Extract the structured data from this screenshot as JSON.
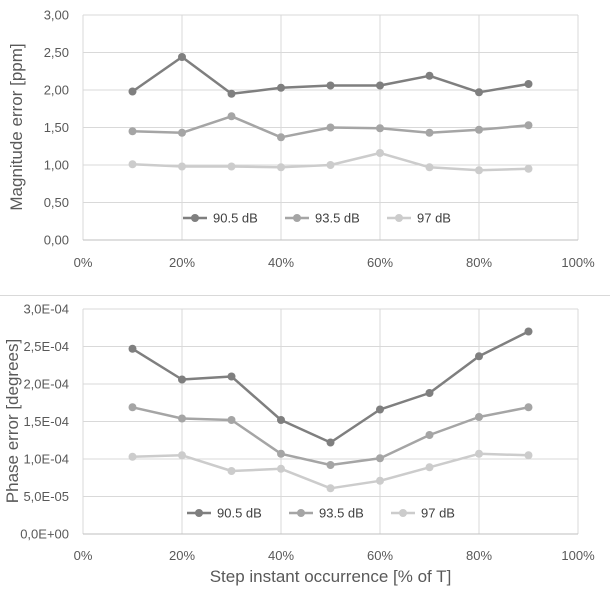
{
  "chart_data": [
    {
      "type": "line",
      "title": "",
      "xlabel": "",
      "ylabel": "Magnitude error [ppm]",
      "xlim": [
        0,
        100
      ],
      "xticks": [
        "0%",
        "20%",
        "40%",
        "60%",
        "80%",
        "100%"
      ],
      "ylim": [
        0,
        3
      ],
      "yticks": [
        "0,00",
        "0,50",
        "1,00",
        "1,50",
        "2,00",
        "2,50",
        "3,00"
      ],
      "grid": true,
      "legend_position": "bottom-inside",
      "x": [
        10,
        20,
        30,
        40,
        50,
        60,
        70,
        80,
        90
      ],
      "series": [
        {
          "name": "90.5 dB",
          "color": "#7f7f7f",
          "values": [
            1.98,
            2.44,
            1.95,
            2.03,
            2.06,
            2.06,
            2.19,
            1.97,
            2.08
          ]
        },
        {
          "name": "93.5 dB",
          "color": "#a5a5a5",
          "values": [
            1.45,
            1.43,
            1.65,
            1.37,
            1.5,
            1.49,
            1.43,
            1.47,
            1.53
          ]
        },
        {
          "name": "97 dB",
          "color": "#cccccc",
          "values": [
            1.01,
            0.98,
            0.98,
            0.97,
            1.0,
            1.16,
            0.97,
            0.93,
            0.95
          ]
        }
      ]
    },
    {
      "type": "line",
      "title": "",
      "xlabel": "Step instant occurrence [% of T]",
      "ylabel": "Phase error [degrees]",
      "xlim": [
        0,
        100
      ],
      "xticks": [
        "0%",
        "20%",
        "40%",
        "60%",
        "80%",
        "100%"
      ],
      "ylim": [
        0,
        0.0003
      ],
      "yticks": [
        "0,0E+00",
        "5,0E-05",
        "1,0E-04",
        "1,5E-04",
        "2,0E-04",
        "2,5E-04",
        "3,0E-04"
      ],
      "grid": true,
      "legend_position": "bottom-inside",
      "x": [
        10,
        20,
        30,
        40,
        50,
        60,
        70,
        80,
        90
      ],
      "series": [
        {
          "name": "90.5 dB",
          "color": "#7f7f7f",
          "values": [
            0.000247,
            0.000206,
            0.00021,
            0.000152,
            0.000122,
            0.000166,
            0.000188,
            0.000237,
            0.00027
          ]
        },
        {
          "name": "93.5 dB",
          "color": "#a5a5a5",
          "values": [
            0.000169,
            0.000154,
            0.000152,
            0.000107,
            9.2e-05,
            0.000101,
            0.000132,
            0.000156,
            0.000169
          ]
        },
        {
          "name": "97 dB",
          "color": "#cccccc",
          "values": [
            0.000103,
            0.000105,
            8.4e-05,
            8.7e-05,
            6.1e-05,
            7.1e-05,
            8.9e-05,
            0.000107,
            0.000105
          ]
        }
      ]
    }
  ]
}
